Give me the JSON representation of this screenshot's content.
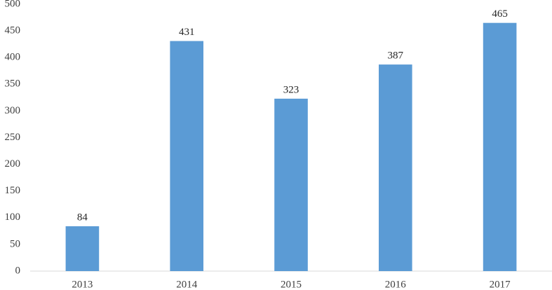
{
  "chart_data": {
    "type": "bar",
    "categories": [
      "2013",
      "2014",
      "2015",
      "2016",
      "2017"
    ],
    "values": [
      84,
      431,
      323,
      387,
      465
    ],
    "color": "#5b9bd5",
    "ylim": [
      0,
      500
    ],
    "yticks": [
      0,
      50,
      100,
      150,
      200,
      250,
      300,
      350,
      400,
      450,
      500
    ],
    "grid": false
  }
}
